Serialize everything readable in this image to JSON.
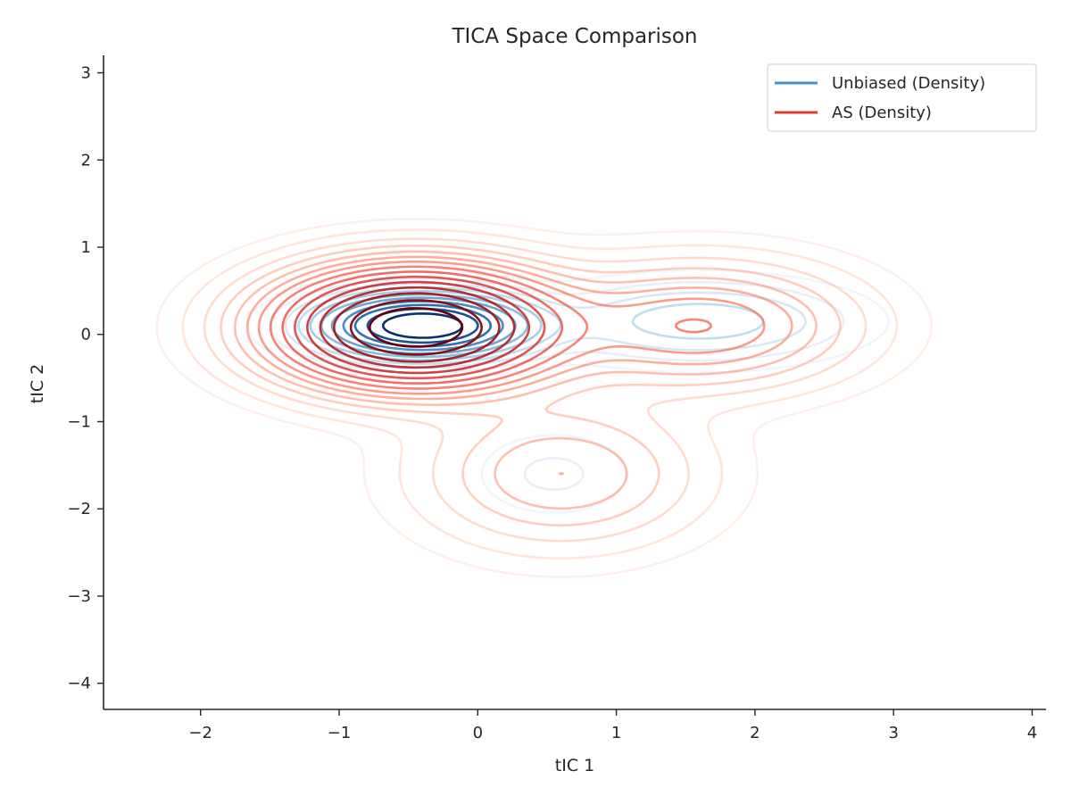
{
  "chart_data": {
    "type": "contour",
    "title": "TICA Space Comparison",
    "xlabel": "tIC 1",
    "ylabel": "tIC 2",
    "xlim": [
      -2.7,
      4.1
    ],
    "ylim": [
      -4.3,
      3.2
    ],
    "xticks": [
      -2,
      -1,
      0,
      1,
      2,
      3,
      4
    ],
    "yticks": [
      -4,
      -3,
      -2,
      -1,
      0,
      1,
      2,
      3
    ],
    "xtick_labels": [
      "−2",
      "−1",
      "0",
      "1",
      "2",
      "3",
      "4"
    ],
    "ytick_labels": [
      "−4",
      "−3",
      "−2",
      "−1",
      "0",
      "1",
      "2",
      "3"
    ],
    "grid": false,
    "legend_position": "top-right",
    "series": [
      {
        "name": "Unbiased (Density)",
        "legend_color": "#4292c6",
        "colormap": "Blues",
        "components": [
          {
            "center": [
              -0.4,
              0.1
            ],
            "sigma": [
              0.45,
              0.22
            ],
            "weight": 1.0
          },
          {
            "center": [
              1.6,
              0.15
            ],
            "sigma": [
              0.65,
              0.28
            ],
            "weight": 0.18
          },
          {
            "center": [
              0.55,
              -1.6
            ],
            "sigma": [
              0.35,
              0.3
            ],
            "weight": 0.06
          }
        ],
        "levels": [
          0.02,
          0.05,
          0.09,
          0.14,
          0.2,
          0.27,
          0.35,
          0.45,
          0.56,
          0.68,
          0.82
        ]
      },
      {
        "name": "AS (Density)",
        "legend_color": "#e03a2f",
        "colormap": "Reds",
        "components": [
          {
            "center": [
              -0.45,
              0.08
            ],
            "sigma": [
              0.6,
              0.4
            ],
            "weight": 1.0
          },
          {
            "center": [
              1.6,
              0.1
            ],
            "sigma": [
              0.65,
              0.42
            ],
            "weight": 0.22
          },
          {
            "center": [
              0.6,
              -1.6
            ],
            "sigma": [
              0.6,
              0.5
            ],
            "weight": 0.13
          }
        ],
        "levels": [
          0.008,
          0.02,
          0.04,
          0.065,
          0.095,
          0.13,
          0.17,
          0.22,
          0.28,
          0.35,
          0.43,
          0.52,
          0.62,
          0.74,
          0.86
        ]
      }
    ]
  }
}
